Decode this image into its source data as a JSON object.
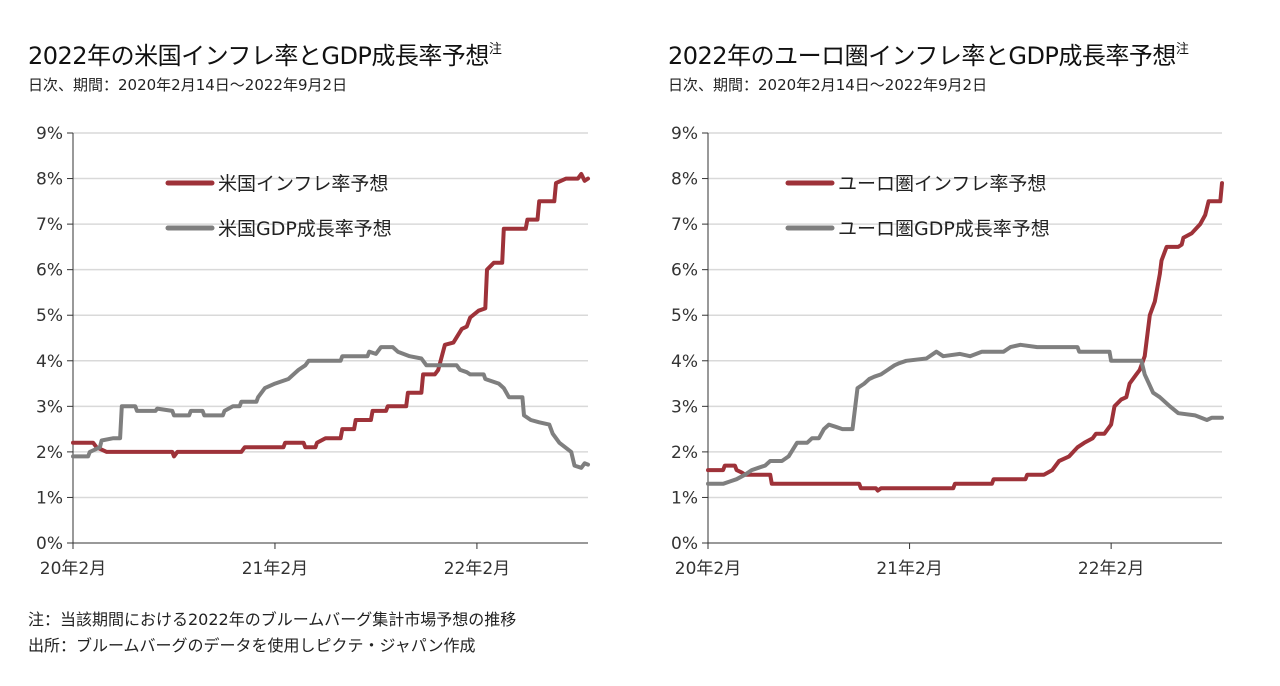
{
  "charts": [
    {
      "title": "2022年の米国インフレ率とGDP成長率予想",
      "title_note_mark": "注",
      "subtitle": "日次、期間：2020年2月14日～2022年9月2日"
    },
    {
      "title": "2022年のユーロ圏インフレ率とGDP成長率予想",
      "title_note_mark": "注",
      "subtitle": "日次、期間：2020年2月14日～2022年9月2日"
    }
  ],
  "footnotes": {
    "note": "注：当該期間における2022年のブルームバーグ集計市場予想の推移",
    "source": "出所：ブルームバーグのデータを使用しピクテ・ジャパン作成"
  },
  "colors": {
    "inflation": "#9e3239",
    "gdp": "#7f7f7f",
    "grid": "#d9d9d9",
    "axis": "#333333"
  },
  "chart_data": [
    {
      "type": "line",
      "title": "2022年の米国インフレ率とGDP成長率予想",
      "x_ticks": [
        "20年2月",
        "21年2月",
        "22年2月"
      ],
      "x_tick_months": [
        0,
        12,
        24
      ],
      "x_range_months": [
        0,
        30.6
      ],
      "ylim": [
        0,
        9
      ],
      "y_ticks": [
        "0%",
        "1%",
        "2%",
        "3%",
        "4%",
        "5%",
        "6%",
        "7%",
        "8%",
        "9%"
      ],
      "grid": true,
      "legend_placement": "top-center",
      "series": [
        {
          "name": "米国インフレ率予想",
          "color_key": "inflation",
          "points": [
            [
              0,
              2.2
            ],
            [
              1.2,
              2.2
            ],
            [
              1.4,
              2.1
            ],
            [
              2,
              2.0
            ],
            [
              5.9,
              2.0
            ],
            [
              6.0,
              1.9
            ],
            [
              6.2,
              2.0
            ],
            [
              7,
              2.0
            ],
            [
              10,
              2.0
            ],
            [
              10.2,
              2.1
            ],
            [
              12.5,
              2.1
            ],
            [
              12.6,
              2.2
            ],
            [
              13.7,
              2.2
            ],
            [
              13.8,
              2.1
            ],
            [
              14.4,
              2.1
            ],
            [
              14.5,
              2.2
            ],
            [
              15,
              2.3
            ],
            [
              15.9,
              2.3
            ],
            [
              16,
              2.5
            ],
            [
              16.7,
              2.5
            ],
            [
              16.8,
              2.7
            ],
            [
              17.7,
              2.7
            ],
            [
              17.8,
              2.9
            ],
            [
              18.6,
              2.9
            ],
            [
              18.7,
              3.0
            ],
            [
              19.8,
              3.0
            ],
            [
              19.9,
              3.3
            ],
            [
              20.7,
              3.3
            ],
            [
              20.8,
              3.7
            ],
            [
              21.5,
              3.7
            ],
            [
              21.7,
              3.8
            ],
            [
              22.1,
              4.35
            ],
            [
              22.6,
              4.4
            ],
            [
              23.1,
              4.7
            ],
            [
              23.4,
              4.75
            ],
            [
              23.6,
              4.95
            ],
            [
              24.1,
              5.1
            ],
            [
              24.5,
              5.15
            ],
            [
              24.6,
              6.0
            ],
            [
              25,
              6.15
            ],
            [
              25.5,
              6.15
            ],
            [
              25.6,
              6.9
            ],
            [
              26.9,
              6.9
            ],
            [
              27,
              7.1
            ],
            [
              27.6,
              7.1
            ],
            [
              27.7,
              7.5
            ],
            [
              28.6,
              7.5
            ],
            [
              28.7,
              7.9
            ],
            [
              29.3,
              8.0
            ],
            [
              30.0,
              8.0
            ],
            [
              30.2,
              8.1
            ],
            [
              30.4,
              7.95
            ],
            [
              30.6,
              8.0
            ]
          ]
        },
        {
          "name": "米国GDP成長率予想",
          "color_key": "gdp",
          "points": [
            [
              0,
              1.9
            ],
            [
              0.9,
              1.9
            ],
            [
              1.0,
              2.0
            ],
            [
              1.6,
              2.1
            ],
            [
              1.7,
              2.25
            ],
            [
              2.4,
              2.3
            ],
            [
              2.8,
              2.3
            ],
            [
              2.9,
              3.0
            ],
            [
              3.7,
              3.0
            ],
            [
              3.8,
              2.9
            ],
            [
              4.9,
              2.9
            ],
            [
              5.0,
              2.95
            ],
            [
              5.9,
              2.9
            ],
            [
              6.0,
              2.8
            ],
            [
              6.9,
              2.8
            ],
            [
              7.0,
              2.9
            ],
            [
              7.7,
              2.9
            ],
            [
              7.8,
              2.8
            ],
            [
              8.9,
              2.8
            ],
            [
              9.0,
              2.9
            ],
            [
              9.5,
              3.0
            ],
            [
              9.9,
              3.0
            ],
            [
              10.0,
              3.1
            ],
            [
              10.9,
              3.1
            ],
            [
              11.0,
              3.2
            ],
            [
              11.4,
              3.4
            ],
            [
              12.0,
              3.5
            ],
            [
              12.8,
              3.6
            ],
            [
              13.4,
              3.8
            ],
            [
              13.8,
              3.9
            ],
            [
              14.0,
              4.0
            ],
            [
              15.9,
              4.0
            ],
            [
              16.0,
              4.1
            ],
            [
              17.5,
              4.1
            ],
            [
              17.6,
              4.2
            ],
            [
              18.0,
              4.15
            ],
            [
              18.3,
              4.3
            ],
            [
              19.0,
              4.3
            ],
            [
              19.3,
              4.2
            ],
            [
              20.0,
              4.1
            ],
            [
              20.7,
              4.05
            ],
            [
              21.0,
              3.9
            ],
            [
              22.0,
              3.9
            ],
            [
              22.8,
              3.9
            ],
            [
              23.0,
              3.8
            ],
            [
              23.4,
              3.75
            ],
            [
              23.6,
              3.7
            ],
            [
              24.4,
              3.7
            ],
            [
              24.5,
              3.6
            ],
            [
              25.3,
              3.5
            ],
            [
              25.6,
              3.4
            ],
            [
              25.9,
              3.2
            ],
            [
              26.7,
              3.2
            ],
            [
              26.8,
              2.8
            ],
            [
              27.2,
              2.7
            ],
            [
              27.7,
              2.65
            ],
            [
              28.3,
              2.6
            ],
            [
              28.5,
              2.4
            ],
            [
              28.9,
              2.2
            ],
            [
              29.6,
              2.0
            ],
            [
              29.8,
              1.7
            ],
            [
              30.2,
              1.65
            ],
            [
              30.4,
              1.75
            ],
            [
              30.6,
              1.72
            ]
          ]
        }
      ]
    },
    {
      "type": "line",
      "title": "2022年のユーロ圏インフレ率とGDP成長率予想",
      "x_ticks": [
        "20年2月",
        "21年2月",
        "22年2月"
      ],
      "x_tick_months": [
        0,
        12,
        24
      ],
      "x_range_months": [
        0,
        30.6
      ],
      "ylim": [
        0,
        9
      ],
      "y_ticks": [
        "0%",
        "1%",
        "2%",
        "3%",
        "4%",
        "5%",
        "6%",
        "7%",
        "8%",
        "9%"
      ],
      "grid": true,
      "legend_placement": "top-center",
      "series": [
        {
          "name": "ユーロ圏インフレ率予想",
          "color_key": "inflation",
          "points": [
            [
              0,
              1.6
            ],
            [
              0.9,
              1.6
            ],
            [
              1.0,
              1.7
            ],
            [
              1.6,
              1.7
            ],
            [
              1.7,
              1.6
            ],
            [
              2.0,
              1.55
            ],
            [
              2.2,
              1.5
            ],
            [
              3.7,
              1.5
            ],
            [
              3.8,
              1.3
            ],
            [
              6.0,
              1.3
            ],
            [
              9.0,
              1.3
            ],
            [
              9.1,
              1.2
            ],
            [
              10.0,
              1.2
            ],
            [
              10.1,
              1.15
            ],
            [
              10.3,
              1.2
            ],
            [
              14.6,
              1.2
            ],
            [
              14.7,
              1.3
            ],
            [
              16.9,
              1.3
            ],
            [
              17.0,
              1.4
            ],
            [
              18.9,
              1.4
            ],
            [
              19.0,
              1.5
            ],
            [
              20.0,
              1.5
            ],
            [
              20.5,
              1.6
            ],
            [
              20.9,
              1.8
            ],
            [
              21.5,
              1.9
            ],
            [
              22.0,
              2.1
            ],
            [
              22.4,
              2.2
            ],
            [
              22.9,
              2.3
            ],
            [
              23.1,
              2.4
            ],
            [
              23.6,
              2.4
            ],
            [
              23.8,
              2.5
            ],
            [
              24.0,
              2.6
            ],
            [
              24.2,
              3.0
            ],
            [
              24.6,
              3.15
            ],
            [
              24.9,
              3.2
            ],
            [
              25.1,
              3.5
            ],
            [
              25.5,
              3.7
            ],
            [
              25.7,
              3.8
            ],
            [
              26.0,
              4.1
            ],
            [
              26.3,
              5.0
            ],
            [
              26.6,
              5.3
            ],
            [
              26.9,
              5.9
            ],
            [
              27.0,
              6.2
            ],
            [
              27.3,
              6.5
            ],
            [
              28.0,
              6.5
            ],
            [
              28.2,
              6.55
            ],
            [
              28.3,
              6.7
            ],
            [
              28.8,
              6.8
            ],
            [
              29.3,
              7.0
            ],
            [
              29.6,
              7.2
            ],
            [
              29.8,
              7.5
            ],
            [
              30.5,
              7.5
            ],
            [
              30.6,
              7.9
            ]
          ]
        },
        {
          "name": "ユーロ圏GDP成長率予想",
          "color_key": "gdp",
          "points": [
            [
              0,
              1.3
            ],
            [
              0.9,
              1.3
            ],
            [
              1.3,
              1.35
            ],
            [
              1.7,
              1.4
            ],
            [
              2.2,
              1.5
            ],
            [
              2.6,
              1.6
            ],
            [
              3.0,
              1.65
            ],
            [
              3.4,
              1.7
            ],
            [
              3.7,
              1.8
            ],
            [
              4.4,
              1.8
            ],
            [
              4.8,
              1.9
            ],
            [
              5.3,
              2.2
            ],
            [
              5.9,
              2.2
            ],
            [
              6.2,
              2.3
            ],
            [
              6.6,
              2.3
            ],
            [
              6.9,
              2.5
            ],
            [
              7.2,
              2.6
            ],
            [
              7.6,
              2.55
            ],
            [
              8.0,
              2.5
            ],
            [
              8.6,
              2.5
            ],
            [
              8.9,
              3.4
            ],
            [
              9.3,
              3.5
            ],
            [
              9.6,
              3.6
            ],
            [
              9.9,
              3.65
            ],
            [
              10.3,
              3.7
            ],
            [
              10.7,
              3.8
            ],
            [
              11.1,
              3.9
            ],
            [
              11.4,
              3.95
            ],
            [
              11.8,
              4.0
            ],
            [
              13.0,
              4.05
            ],
            [
              13.6,
              4.2
            ],
            [
              14.0,
              4.1
            ],
            [
              15.0,
              4.15
            ],
            [
              15.6,
              4.1
            ],
            [
              16.3,
              4.2
            ],
            [
              17.6,
              4.2
            ],
            [
              18.0,
              4.3
            ],
            [
              18.6,
              4.35
            ],
            [
              19.6,
              4.3
            ],
            [
              22.0,
              4.3
            ],
            [
              22.1,
              4.2
            ],
            [
              23.9,
              4.2
            ],
            [
              24.0,
              4.0
            ],
            [
              25.8,
              4.0
            ],
            [
              26.0,
              3.7
            ],
            [
              26.5,
              3.3
            ],
            [
              26.9,
              3.2
            ],
            [
              27.5,
              3.0
            ],
            [
              28.0,
              2.85
            ],
            [
              29.0,
              2.8
            ],
            [
              29.7,
              2.7
            ],
            [
              30.0,
              2.75
            ],
            [
              30.6,
              2.75
            ]
          ]
        }
      ]
    }
  ]
}
